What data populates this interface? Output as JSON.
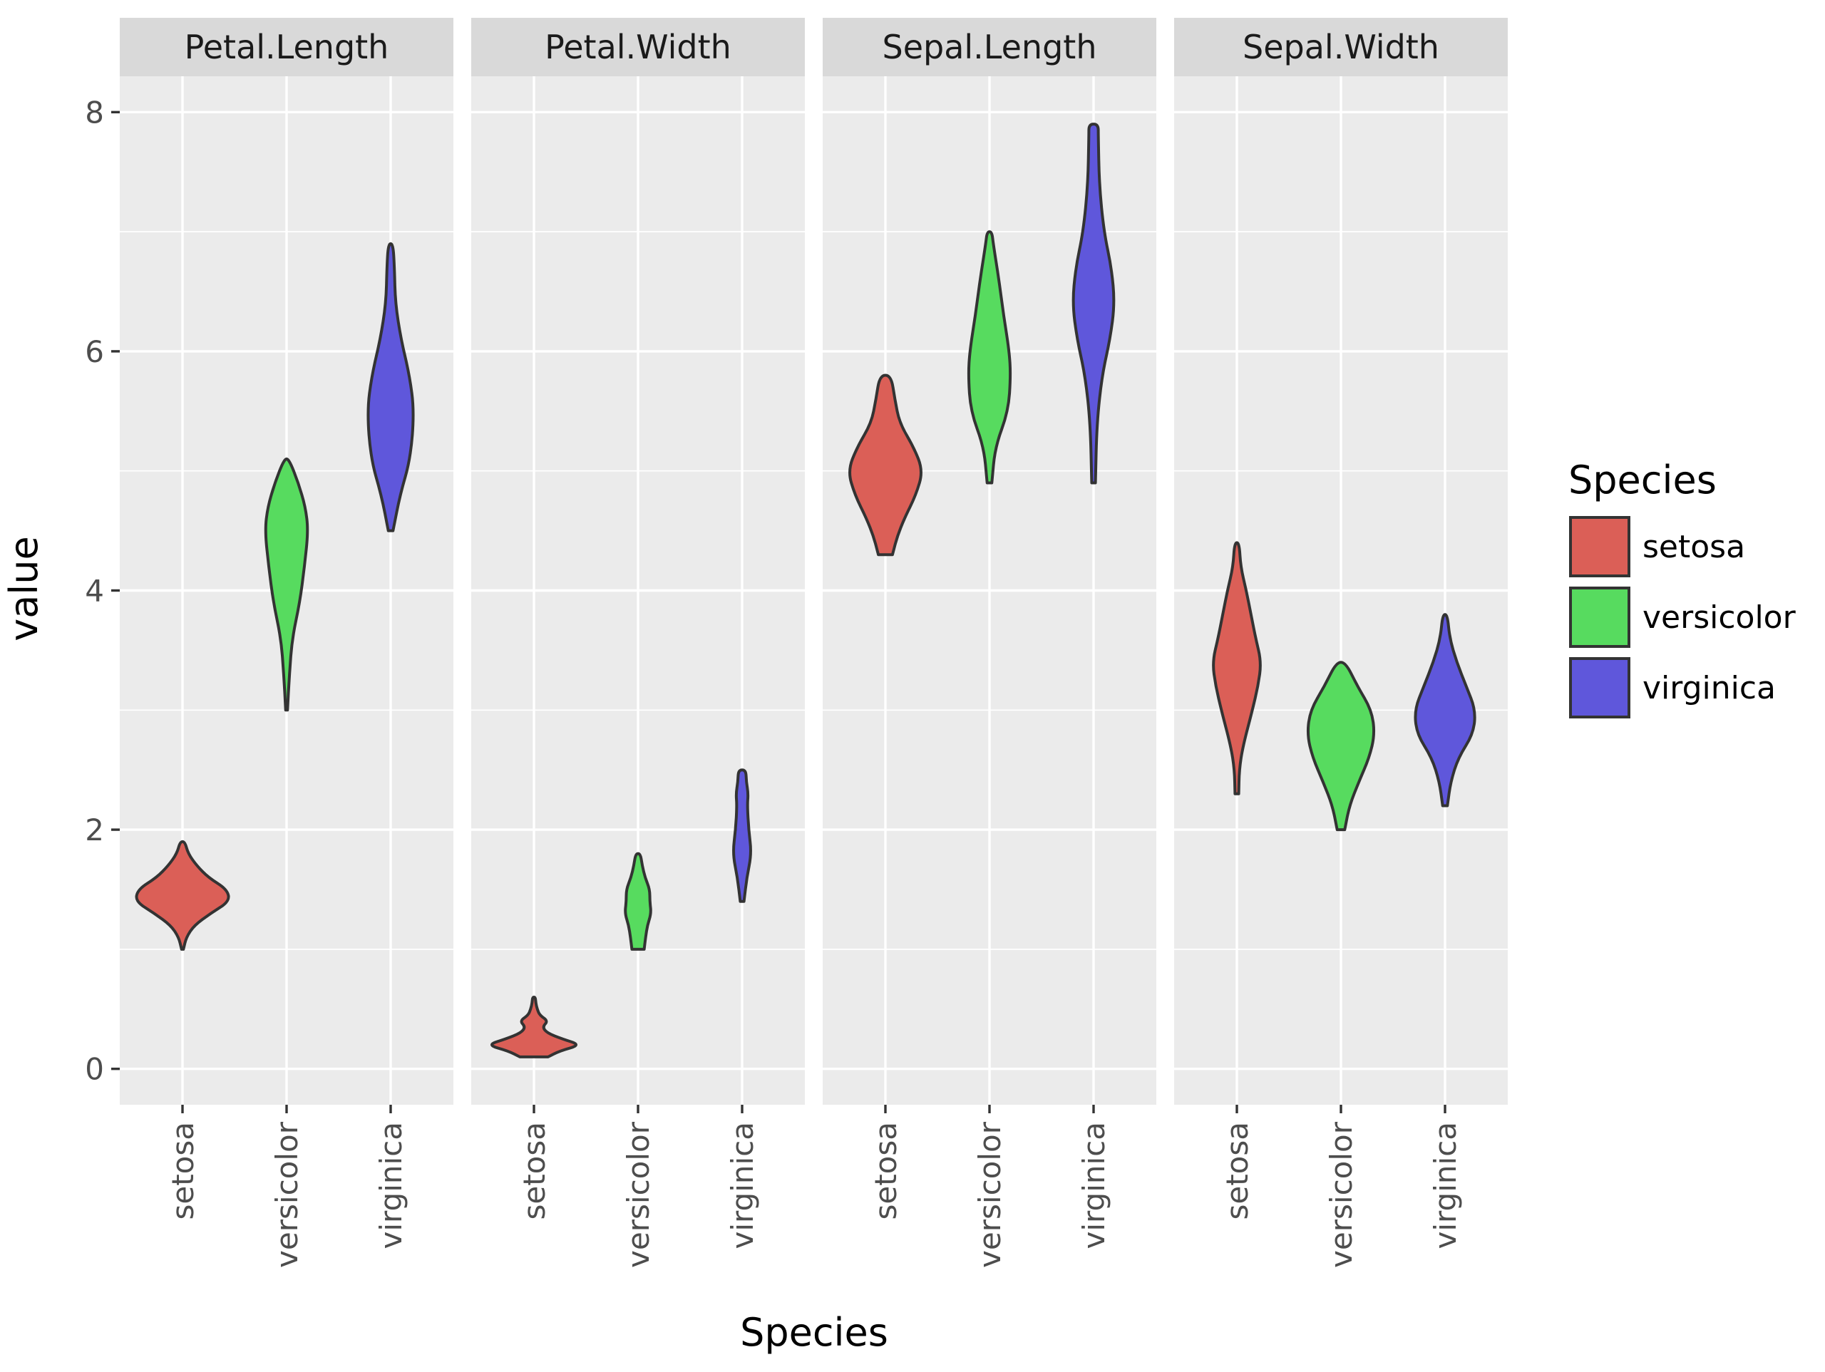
{
  "chart_data": {
    "type": "violin",
    "facet_by": "variable",
    "facets": [
      "Petal.Length",
      "Petal.Width",
      "Sepal.Length",
      "Sepal.Width"
    ],
    "categories": [
      "setosa",
      "versicolor",
      "virginica"
    ],
    "xlabel": "Species",
    "ylabel": "value",
    "ylim": [
      -0.3,
      8.3
    ],
    "yticks": [
      0,
      2,
      4,
      6,
      8
    ],
    "grid": true,
    "legend": {
      "title": "Species",
      "position": "right",
      "entries": [
        {
          "name": "setosa",
          "color": "#DB5F57"
        },
        {
          "name": "versicolor",
          "color": "#57DB5F"
        },
        {
          "name": "virginica",
          "color": "#5F57DB"
        }
      ]
    },
    "violins": {
      "Petal.Length": {
        "setosa": {
          "min": 1.0,
          "max": 1.9,
          "profile": [
            [
              1.0,
              0.02
            ],
            [
              1.1,
              0.08
            ],
            [
              1.2,
              0.25
            ],
            [
              1.3,
              0.6
            ],
            [
              1.4,
              1.0
            ],
            [
              1.5,
              0.95
            ],
            [
              1.6,
              0.55
            ],
            [
              1.7,
              0.3
            ],
            [
              1.8,
              0.12
            ],
            [
              1.9,
              0.05
            ]
          ]
        },
        "versicolor": {
          "min": 3.0,
          "max": 5.1,
          "profile": [
            [
              3.0,
              0.02
            ],
            [
              3.3,
              0.06
            ],
            [
              3.6,
              0.12
            ],
            [
              3.9,
              0.28
            ],
            [
              4.2,
              0.38
            ],
            [
              4.5,
              0.46
            ],
            [
              4.7,
              0.4
            ],
            [
              4.9,
              0.25
            ],
            [
              5.1,
              0.05
            ]
          ]
        },
        "virginica": {
          "min": 4.5,
          "max": 6.9,
          "profile": [
            [
              4.5,
              0.05
            ],
            [
              4.8,
              0.2
            ],
            [
              5.1,
              0.42
            ],
            [
              5.5,
              0.5
            ],
            [
              5.8,
              0.4
            ],
            [
              6.1,
              0.22
            ],
            [
              6.4,
              0.1
            ],
            [
              6.7,
              0.08
            ],
            [
              6.9,
              0.05
            ]
          ]
        }
      },
      "Petal.Width": {
        "setosa": {
          "min": 0.1,
          "max": 0.6,
          "profile": [
            [
              0.1,
              0.3
            ],
            [
              0.15,
              0.55
            ],
            [
              0.2,
              1.0
            ],
            [
              0.25,
              0.6
            ],
            [
              0.3,
              0.28
            ],
            [
              0.35,
              0.18
            ],
            [
              0.4,
              0.3
            ],
            [
              0.45,
              0.12
            ],
            [
              0.5,
              0.07
            ],
            [
              0.55,
              0.04
            ],
            [
              0.6,
              0.03
            ]
          ]
        },
        "versicolor": {
          "min": 1.0,
          "max": 1.8,
          "profile": [
            [
              1.0,
              0.13
            ],
            [
              1.1,
              0.16
            ],
            [
              1.2,
              0.2
            ],
            [
              1.3,
              0.28
            ],
            [
              1.4,
              0.25
            ],
            [
              1.5,
              0.25
            ],
            [
              1.6,
              0.15
            ],
            [
              1.7,
              0.09
            ],
            [
              1.8,
              0.05
            ]
          ]
        },
        "virginica": {
          "min": 1.4,
          "max": 2.5,
          "profile": [
            [
              1.4,
              0.04
            ],
            [
              1.6,
              0.1
            ],
            [
              1.8,
              0.2
            ],
            [
              2.0,
              0.14
            ],
            [
              2.2,
              0.11
            ],
            [
              2.3,
              0.13
            ],
            [
              2.4,
              0.09
            ],
            [
              2.5,
              0.08
            ]
          ]
        }
      },
      "Sepal.Length": {
        "setosa": {
          "min": 4.3,
          "max": 5.8,
          "profile": [
            [
              4.3,
              0.15
            ],
            [
              4.45,
              0.25
            ],
            [
              4.6,
              0.4
            ],
            [
              4.8,
              0.65
            ],
            [
              5.0,
              0.8
            ],
            [
              5.2,
              0.6
            ],
            [
              5.4,
              0.3
            ],
            [
              5.6,
              0.2
            ],
            [
              5.8,
              0.12
            ]
          ]
        },
        "versicolor": {
          "min": 4.9,
          "max": 7.0,
          "profile": [
            [
              4.9,
              0.05
            ],
            [
              5.2,
              0.12
            ],
            [
              5.5,
              0.4
            ],
            [
              5.8,
              0.45
            ],
            [
              6.0,
              0.42
            ],
            [
              6.3,
              0.3
            ],
            [
              6.6,
              0.2
            ],
            [
              6.9,
              0.08
            ],
            [
              7.0,
              0.05
            ]
          ]
        },
        "virginica": {
          "min": 4.9,
          "max": 7.9,
          "profile": [
            [
              4.9,
              0.04
            ],
            [
              5.4,
              0.07
            ],
            [
              5.8,
              0.18
            ],
            [
              6.1,
              0.35
            ],
            [
              6.4,
              0.45
            ],
            [
              6.7,
              0.38
            ],
            [
              7.0,
              0.22
            ],
            [
              7.4,
              0.12
            ],
            [
              7.8,
              0.1
            ],
            [
              7.9,
              0.1
            ]
          ]
        }
      },
      "Sepal.Width": {
        "setosa": {
          "min": 2.3,
          "max": 4.4,
          "profile": [
            [
              2.3,
              0.04
            ],
            [
              2.5,
              0.05
            ],
            [
              2.7,
              0.13
            ],
            [
              3.0,
              0.33
            ],
            [
              3.2,
              0.45
            ],
            [
              3.4,
              0.52
            ],
            [
              3.6,
              0.4
            ],
            [
              3.8,
              0.3
            ],
            [
              4.0,
              0.2
            ],
            [
              4.2,
              0.08
            ],
            [
              4.4,
              0.05
            ]
          ]
        },
        "versicolor": {
          "min": 2.0,
          "max": 3.4,
          "profile": [
            [
              2.0,
              0.08
            ],
            [
              2.2,
              0.18
            ],
            [
              2.4,
              0.38
            ],
            [
              2.6,
              0.6
            ],
            [
              2.8,
              0.72
            ],
            [
              3.0,
              0.65
            ],
            [
              3.2,
              0.35
            ],
            [
              3.4,
              0.1
            ]
          ]
        },
        "virginica": {
          "min": 2.2,
          "max": 3.8,
          "profile": [
            [
              2.2,
              0.05
            ],
            [
              2.4,
              0.12
            ],
            [
              2.6,
              0.28
            ],
            [
              2.8,
              0.6
            ],
            [
              3.0,
              0.65
            ],
            [
              3.2,
              0.45
            ],
            [
              3.4,
              0.25
            ],
            [
              3.6,
              0.1
            ],
            [
              3.8,
              0.05
            ]
          ]
        }
      }
    }
  }
}
